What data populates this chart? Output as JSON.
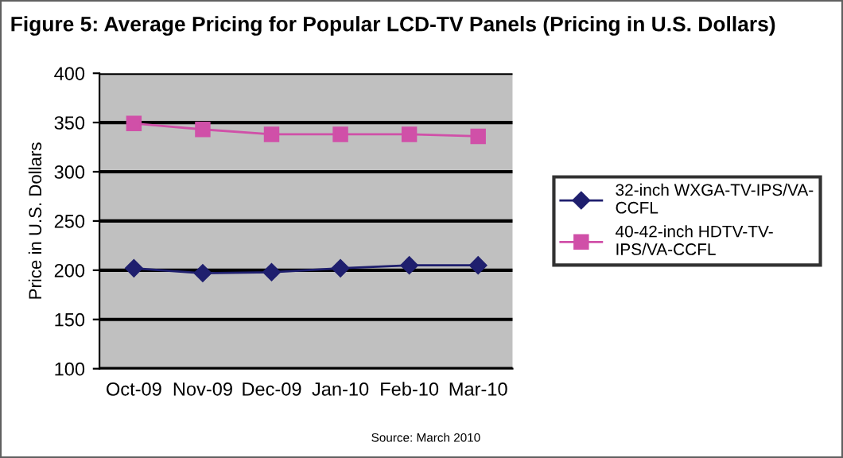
{
  "chart_data": {
    "type": "line",
    "title": "Figure 5: Average Pricing for Popular LCD-TV Panels (Pricing in U.S. Dollars)",
    "ylabel": "Price in U.S. Dollars",
    "categories": [
      "Oct-09",
      "Nov-09",
      "Dec-09",
      "Jan-10",
      "Feb-10",
      "Mar-10"
    ],
    "series": [
      {
        "name": "32-inch WXGA-TV-IPS/VA-CCFL",
        "color": "#1f1f6e",
        "marker": "diamond",
        "values": [
          202,
          197,
          198,
          202,
          205,
          205
        ]
      },
      {
        "name": "40-42-inch HDTV-TV-IPS/VA-CCFL",
        "color": "#d050a8",
        "marker": "square",
        "values": [
          349,
          343,
          338,
          338,
          338,
          336
        ]
      }
    ],
    "ylim": [
      100,
      400
    ],
    "yticks": [
      100,
      150,
      200,
      250,
      300,
      350,
      400
    ],
    "grid": "y",
    "legend": "right",
    "annotations": [
      "Source: March 2010"
    ]
  }
}
